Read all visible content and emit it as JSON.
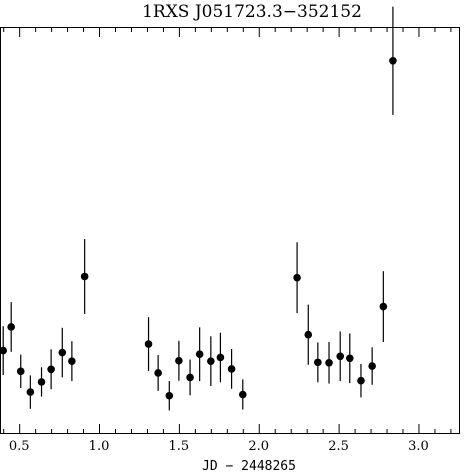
{
  "chart_data": {
    "type": "scatter",
    "title": "1RXS J051723.3−352152",
    "xlabel": "JD − 2448265",
    "ylabel": "",
    "xlim": [
      0.38,
      3.26
    ],
    "ylim": [
      0.0,
      1.0
    ],
    "x_ticks": [
      0.5,
      1.0,
      1.5,
      2.0,
      2.5,
      3.0
    ],
    "x_tick_labels": [
      "0.5",
      "1.0",
      "1.5",
      "2.0",
      "2.5",
      "3.0"
    ],
    "x_minor_step": 0.1,
    "grid": false,
    "points": [
      {
        "x": 0.4,
        "y": 0.205,
        "err": 0.06
      },
      {
        "x": 0.45,
        "y": 0.263,
        "err": 0.061
      },
      {
        "x": 0.51,
        "y": 0.154,
        "err": 0.041
      },
      {
        "x": 0.57,
        "y": 0.103,
        "err": 0.041
      },
      {
        "x": 0.64,
        "y": 0.128,
        "err": 0.036
      },
      {
        "x": 0.7,
        "y": 0.159,
        "err": 0.049
      },
      {
        "x": 0.77,
        "y": 0.2,
        "err": 0.061
      },
      {
        "x": 0.83,
        "y": 0.179,
        "err": 0.049
      },
      {
        "x": 0.91,
        "y": 0.387,
        "err": 0.092
      },
      {
        "x": 1.31,
        "y": 0.221,
        "err": 0.066
      },
      {
        "x": 1.37,
        "y": 0.15,
        "err": 0.044
      },
      {
        "x": 1.44,
        "y": 0.094,
        "err": 0.036
      },
      {
        "x": 1.5,
        "y": 0.18,
        "err": 0.049
      },
      {
        "x": 1.57,
        "y": 0.139,
        "err": 0.044
      },
      {
        "x": 1.63,
        "y": 0.196,
        "err": 0.066
      },
      {
        "x": 1.7,
        "y": 0.179,
        "err": 0.061
      },
      {
        "x": 1.76,
        "y": 0.188,
        "err": 0.061
      },
      {
        "x": 1.83,
        "y": 0.16,
        "err": 0.049
      },
      {
        "x": 1.9,
        "y": 0.097,
        "err": 0.037
      },
      {
        "x": 2.24,
        "y": 0.384,
        "err": 0.087
      },
      {
        "x": 2.31,
        "y": 0.244,
        "err": 0.074
      },
      {
        "x": 2.37,
        "y": 0.176,
        "err": 0.049
      },
      {
        "x": 2.44,
        "y": 0.175,
        "err": 0.051
      },
      {
        "x": 2.51,
        "y": 0.191,
        "err": 0.061
      },
      {
        "x": 2.57,
        "y": 0.186,
        "err": 0.061
      },
      {
        "x": 2.64,
        "y": 0.131,
        "err": 0.041
      },
      {
        "x": 2.71,
        "y": 0.167,
        "err": 0.046
      },
      {
        "x": 2.78,
        "y": 0.313,
        "err": 0.087
      },
      {
        "x": 2.84,
        "y": 0.917,
        "err": 0.133
      }
    ]
  }
}
